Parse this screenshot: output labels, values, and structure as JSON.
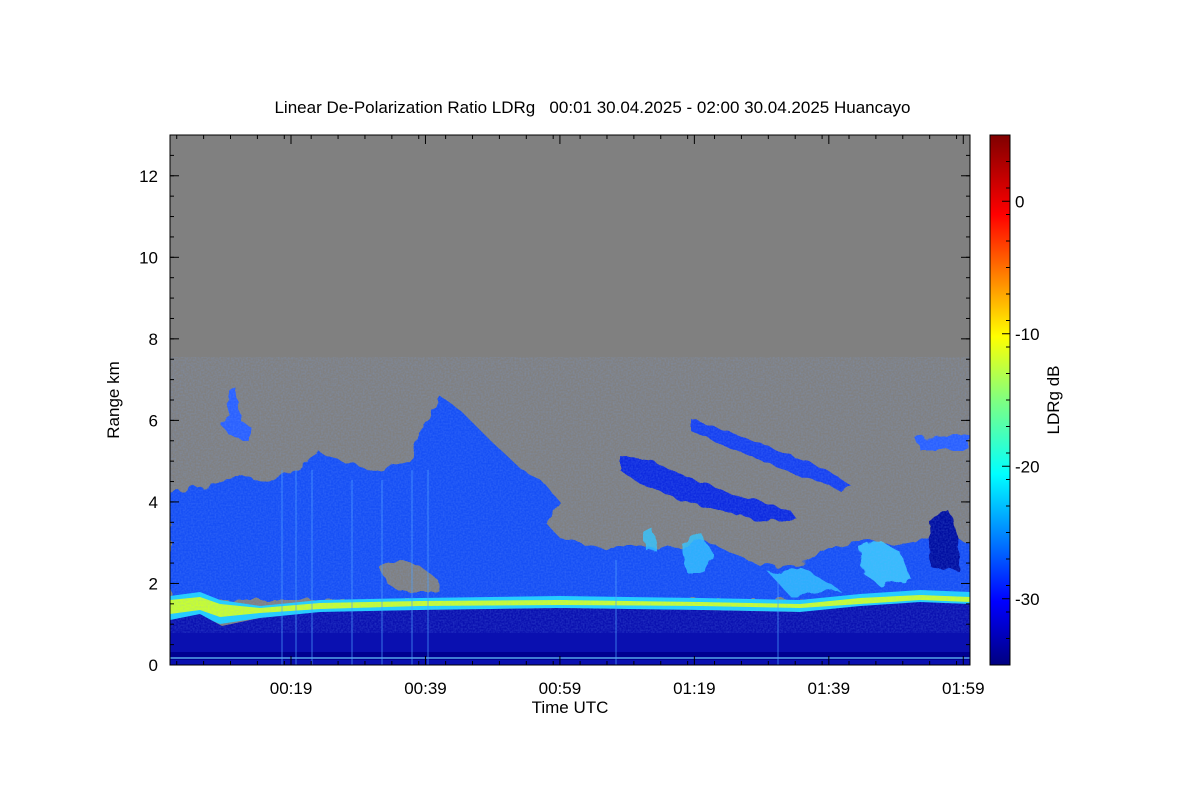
{
  "chart_data": {
    "type": "heatmap",
    "title": "Linear De-Polarization Ratio LDRg   00:01 30.04.2025 - 02:00 30.04.2025 Huancayo",
    "xlabel": "Time UTC",
    "ylabel": "Range km",
    "colorbar_label": "LDRg dB",
    "x_ticks": [
      "00:19",
      "00:39",
      "00:59",
      "01:19",
      "01:39",
      "01:59"
    ],
    "x_range_minutes": [
      1,
      120
    ],
    "x_tick_minutes": [
      19,
      39,
      59,
      79,
      99,
      119
    ],
    "y_ticks": [
      "0",
      "2",
      "4",
      "6",
      "8",
      "10",
      "12"
    ],
    "y_tick_values": [
      0,
      2,
      4,
      6,
      8,
      10,
      12
    ],
    "y_range_km": [
      0,
      13
    ],
    "colorbar_ticks": [
      "0",
      "-10",
      "-20",
      "-30"
    ],
    "colorbar_tick_values": [
      0,
      -10,
      -20,
      -30
    ],
    "colorbar_range_db": [
      -35,
      5
    ],
    "no_data_color": "#808080",
    "colormap": "jet",
    "features": [
      {
        "name": "near-surface layer",
        "time_range": [
          1,
          120
        ],
        "range_km": [
          0,
          1.4
        ],
        "ldr_db": -33
      },
      {
        "name": "melting-layer / bright band",
        "time_range": [
          1,
          120
        ],
        "range_km": [
          1.3,
          1.7
        ],
        "ldr_db": -14
      },
      {
        "name": "stratiform cloud",
        "time_range": [
          1,
          120
        ],
        "range_km": [
          1.7,
          4.5
        ],
        "ldr_db": -28
      },
      {
        "name": "convective tower",
        "time_range": [
          38,
          59
        ],
        "range_km": [
          4.0,
          6.6
        ],
        "ldr_db": -27
      },
      {
        "name": "upper streaks",
        "time_range": [
          70,
          100
        ],
        "range_km": [
          3.5,
          6.0
        ],
        "ldr_db": -30
      }
    ]
  }
}
